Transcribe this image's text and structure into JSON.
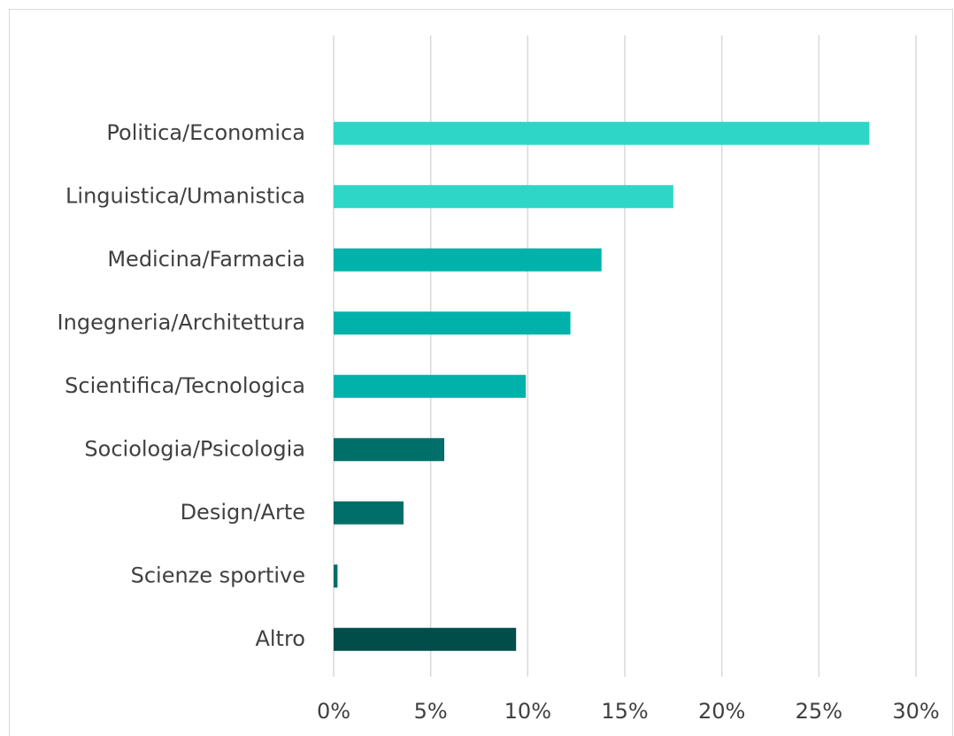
{
  "chart_data": {
    "type": "bar",
    "orientation": "horizontal",
    "categories": [
      "Politica/Economica",
      "Linguistica/Umanistica",
      "Medicina/Farmacia",
      "Ingegneria/Architettura",
      "Scientifica/Tecnologica",
      "Sociologia/Psicologia",
      "Design/Arte",
      "Scienze sportive",
      "Altro"
    ],
    "values": [
      27.6,
      17.5,
      13.8,
      12.2,
      9.9,
      5.7,
      3.6,
      0.2,
      9.4
    ],
    "colors": [
      "#2dd6c7",
      "#2dd6c7",
      "#00b2a9",
      "#00b2a9",
      "#00b2a9",
      "#006e69",
      "#006e69",
      "#006e69",
      "#004d4a"
    ],
    "xlim": [
      0,
      30
    ],
    "xticks": [
      {
        "value": 0,
        "label": "0%"
      },
      {
        "value": 5,
        "label": "5%"
      },
      {
        "value": 10,
        "label": "10%"
      },
      {
        "value": 15,
        "label": "15%"
      },
      {
        "value": 20,
        "label": "20%"
      },
      {
        "value": 25,
        "label": "25%"
      },
      {
        "value": 30,
        "label": "30%"
      }
    ],
    "grid": true
  }
}
